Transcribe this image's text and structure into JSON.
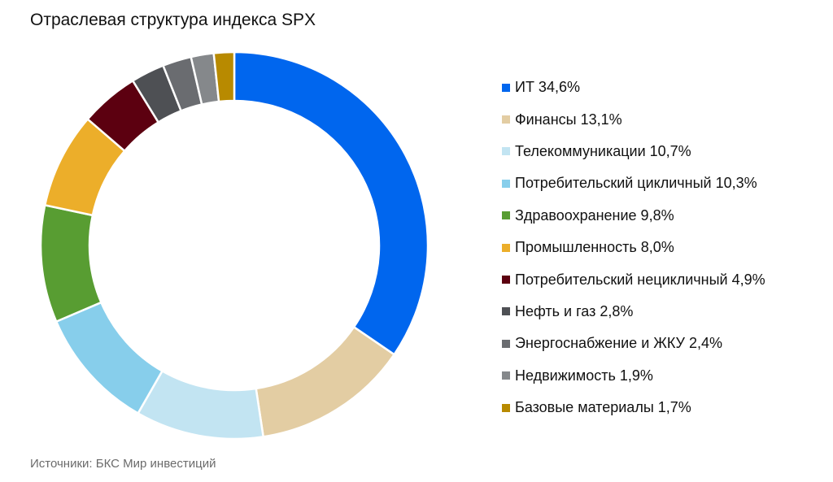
{
  "chart_data": {
    "type": "pie",
    "variant": "donut",
    "title": "Отраслевая структура индекса SPX",
    "source": "Источники: БКС Мир инвестиций",
    "legend_position": "right",
    "unit": "%",
    "slices": [
      {
        "label": "ИТ 34,6%",
        "value": 34.6,
        "color": "#0066ee"
      },
      {
        "label": "Финансы 13,1%",
        "value": 13.1,
        "color": "#e3cda3"
      },
      {
        "label": "Телекоммуникации 10,7%",
        "value": 10.7,
        "color": "#c2e4f2"
      },
      {
        "label": "Потребительский цикличный 10,3%",
        "value": 10.3,
        "color": "#87ceeb"
      },
      {
        "label": "Здравоохранение 9,8%",
        "value": 9.8,
        "color": "#589d32"
      },
      {
        "label": "Промышленность 8,0%",
        "value": 8.0,
        "color": "#ecae2a"
      },
      {
        "label": "Потребительский нецикличный 4,9%",
        "value": 4.9,
        "color": "#5c0010"
      },
      {
        "label": "Нефть и газ 2,8%",
        "value": 2.8,
        "color": "#4e5054"
      },
      {
        "label": "Энергоснабжение и ЖКУ 2,4%",
        "value": 2.4,
        "color": "#6a6c70"
      },
      {
        "label": "Недвижимость 1,9%",
        "value": 1.9,
        "color": "#85888b"
      },
      {
        "label": "Базовые материалы 1,7%",
        "value": 1.7,
        "color": "#b88a00"
      }
    ]
  }
}
